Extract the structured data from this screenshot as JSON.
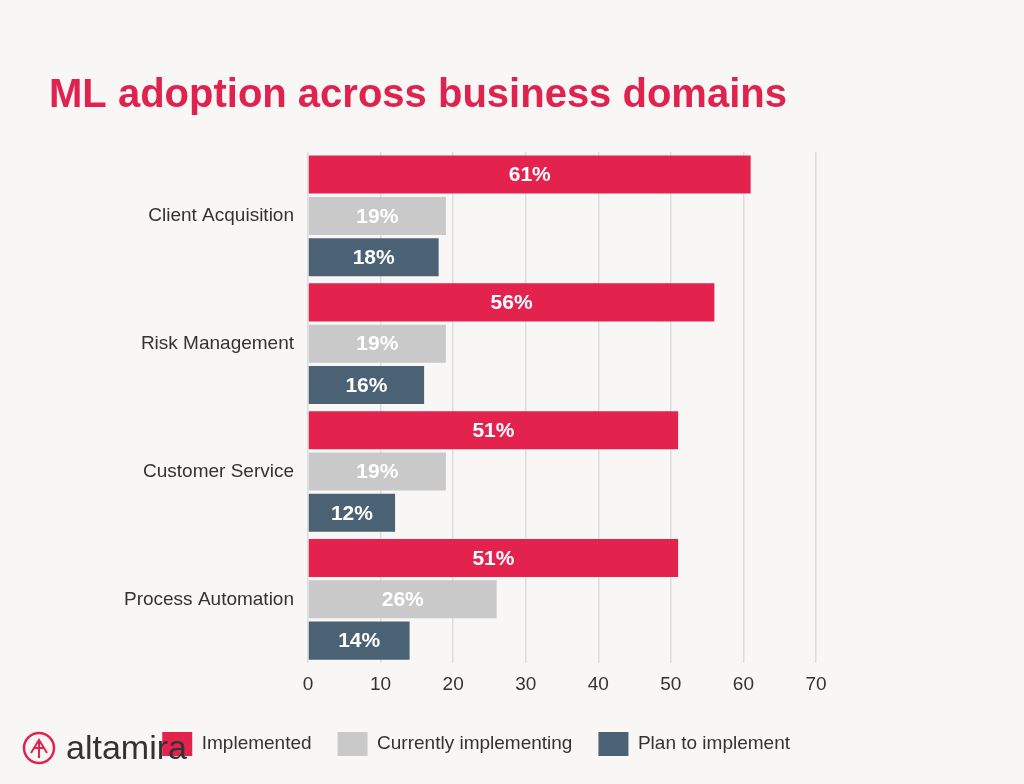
{
  "chart_data": {
    "type": "bar",
    "title": "ML adoption across business domains",
    "orientation": "horizontal",
    "categories": [
      "Client Acquisition",
      "Risk Management",
      "Customer Service",
      "Process Automation"
    ],
    "series": [
      {
        "name": "Implemented",
        "color": "#e3224e",
        "values": [
          61,
          56,
          51,
          51
        ],
        "value_labels": [
          "61%",
          "56%",
          "51%",
          "51%"
        ]
      },
      {
        "name": "Currently implementing",
        "color": "#c9c9c9",
        "values": [
          19,
          19,
          19,
          26
        ],
        "value_labels": [
          "19%",
          "19%",
          "19%",
          "26%"
        ]
      },
      {
        "name": "Plan to implement",
        "color": "#4b6275",
        "values": [
          18,
          16,
          12,
          14
        ],
        "value_labels": [
          "18%",
          "16%",
          "12%",
          "14%"
        ]
      }
    ],
    "xlim": [
      0,
      70
    ],
    "xticks": [
      0,
      10,
      20,
      30,
      40,
      50,
      60,
      70
    ],
    "grid": true,
    "legend": "bottom",
    "data_labels": true,
    "logo": "altamira"
  }
}
